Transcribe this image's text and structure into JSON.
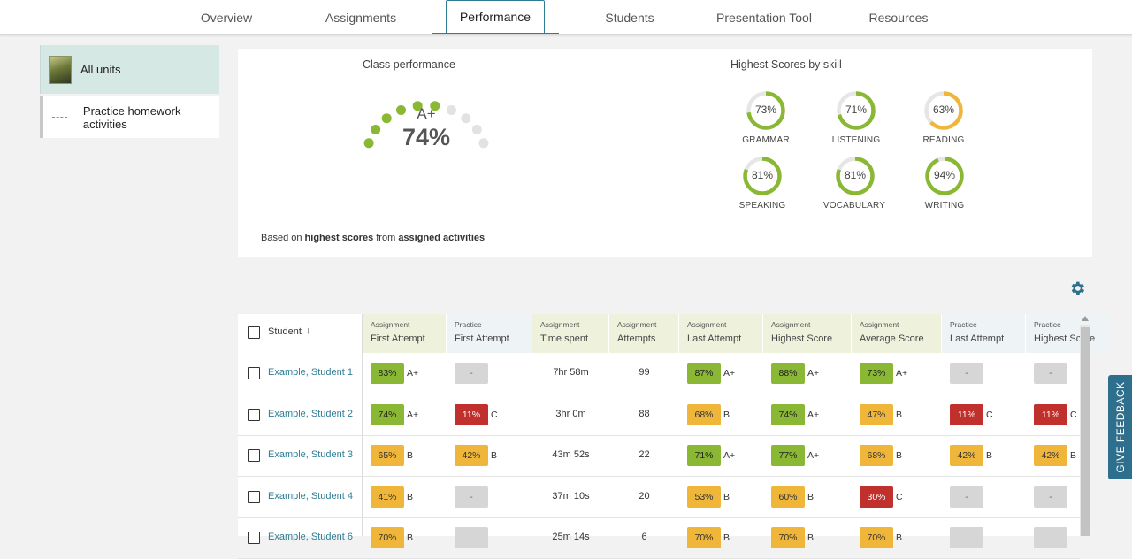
{
  "nav": {
    "tabs": [
      {
        "label": "Overview"
      },
      {
        "label": "Assignments"
      },
      {
        "label": "Performance"
      },
      {
        "label": "Students"
      },
      {
        "label": "Presentation Tool"
      },
      {
        "label": "Resources"
      }
    ],
    "active": "Performance"
  },
  "sidebar": {
    "items": [
      {
        "label": "All units"
      },
      {
        "label": "Practice homework activities"
      }
    ]
  },
  "class_performance": {
    "title": "Class performance",
    "grade": "A+",
    "percent": "74%",
    "dots_filled": 6,
    "dots_total": 10,
    "colors": {
      "filled": "#8ab834",
      "empty": "#e2e2e2"
    }
  },
  "skills": {
    "title": "Highest Scores by skill",
    "items": [
      {
        "name": "GRAMMAR",
        "percent": "73%",
        "value": 73,
        "color": "#8ab834"
      },
      {
        "name": "LISTENING",
        "percent": "71%",
        "value": 71,
        "color": "#8ab834"
      },
      {
        "name": "READING",
        "percent": "63%",
        "value": 63,
        "color": "#f0b63a"
      },
      {
        "name": "SPEAKING",
        "percent": "81%",
        "value": 81,
        "color": "#8ab834"
      },
      {
        "name": "VOCABULARY",
        "percent": "81%",
        "value": 81,
        "color": "#8ab834"
      },
      {
        "name": "WRITING",
        "percent": "94%",
        "value": 94,
        "color": "#8ab834"
      }
    ]
  },
  "footnote": {
    "prefix": "Based on",
    "bold1": "highest scores",
    "mid": "from",
    "bold2": "assigned activities"
  },
  "feedback": {
    "label": "GIVE FEEDBACK"
  },
  "table": {
    "student_header": "Student",
    "columns": [
      {
        "small": "Assignment",
        "big": "First Attempt",
        "kind": "assign"
      },
      {
        "small": "Practice",
        "big": "First Attempt",
        "kind": "practice"
      },
      {
        "small": "Assignment",
        "big": "Time spent",
        "kind": "assign"
      },
      {
        "small": "Assignment",
        "big": "Attempts",
        "kind": "assign"
      },
      {
        "small": "Assignment",
        "big": "Last Attempt",
        "kind": "assign"
      },
      {
        "small": "Assignment",
        "big": "Highest Score",
        "kind": "assign"
      },
      {
        "small": "Assignment",
        "big": "Average Score",
        "kind": "assign"
      },
      {
        "small": "Practice",
        "big": "Last Attempt",
        "kind": "practice"
      },
      {
        "small": "Practice",
        "big": "Highest Score",
        "kind": "practice"
      }
    ],
    "rows": [
      {
        "name": "Example, Student 1",
        "cells": [
          {
            "v": "83%",
            "c": "green",
            "g": "A+"
          },
          {
            "v": "-",
            "c": "gray",
            "g": ""
          },
          {
            "t": "7hr 58m"
          },
          {
            "t": "99"
          },
          {
            "v": "87%",
            "c": "green",
            "g": "A+"
          },
          {
            "v": "88%",
            "c": "green",
            "g": "A+"
          },
          {
            "v": "73%",
            "c": "green",
            "g": "A+"
          },
          {
            "v": "-",
            "c": "gray",
            "g": ""
          },
          {
            "v": "-",
            "c": "gray",
            "g": ""
          }
        ]
      },
      {
        "name": "Example, Student 2",
        "cells": [
          {
            "v": "74%",
            "c": "green",
            "g": "A+"
          },
          {
            "v": "11%",
            "c": "red",
            "g": "C"
          },
          {
            "t": "3hr 0m"
          },
          {
            "t": "88"
          },
          {
            "v": "68%",
            "c": "yellow",
            "g": "B"
          },
          {
            "v": "74%",
            "c": "green",
            "g": "A+"
          },
          {
            "v": "47%",
            "c": "yellow",
            "g": "B"
          },
          {
            "v": "11%",
            "c": "red",
            "g": "C"
          },
          {
            "v": "11%",
            "c": "red",
            "g": "C"
          }
        ]
      },
      {
        "name": "Example, Student 3",
        "cells": [
          {
            "v": "65%",
            "c": "yellow",
            "g": "B"
          },
          {
            "v": "42%",
            "c": "yellow",
            "g": "B"
          },
          {
            "t": "43m 52s"
          },
          {
            "t": "22"
          },
          {
            "v": "71%",
            "c": "green",
            "g": "A+"
          },
          {
            "v": "77%",
            "c": "green",
            "g": "A+"
          },
          {
            "v": "68%",
            "c": "yellow",
            "g": "B"
          },
          {
            "v": "42%",
            "c": "yellow",
            "g": "B"
          },
          {
            "v": "42%",
            "c": "yellow",
            "g": "B"
          }
        ]
      },
      {
        "name": "Example, Student 4",
        "cells": [
          {
            "v": "41%",
            "c": "yellow",
            "g": "B"
          },
          {
            "v": "-",
            "c": "gray",
            "g": ""
          },
          {
            "t": "37m 10s"
          },
          {
            "t": "20"
          },
          {
            "v": "53%",
            "c": "yellow",
            "g": "B"
          },
          {
            "v": "60%",
            "c": "yellow",
            "g": "B"
          },
          {
            "v": "30%",
            "c": "red",
            "g": "C"
          },
          {
            "v": "-",
            "c": "gray",
            "g": ""
          },
          {
            "v": "-",
            "c": "gray",
            "g": ""
          }
        ]
      },
      {
        "name": "Example, Student 6",
        "cells": [
          {
            "v": "70%",
            "c": "yellow",
            "g": "B"
          },
          {
            "v": "",
            "c": "gray",
            "g": ""
          },
          {
            "t": "25m 14s"
          },
          {
            "t": "6"
          },
          {
            "v": "70%",
            "c": "yellow",
            "g": "B"
          },
          {
            "v": "70%",
            "c": "yellow",
            "g": "B"
          },
          {
            "v": "70%",
            "c": "yellow",
            "g": "B"
          },
          {
            "v": "",
            "c": "gray",
            "g": ""
          },
          {
            "v": "",
            "c": "gray",
            "g": ""
          }
        ]
      }
    ]
  }
}
